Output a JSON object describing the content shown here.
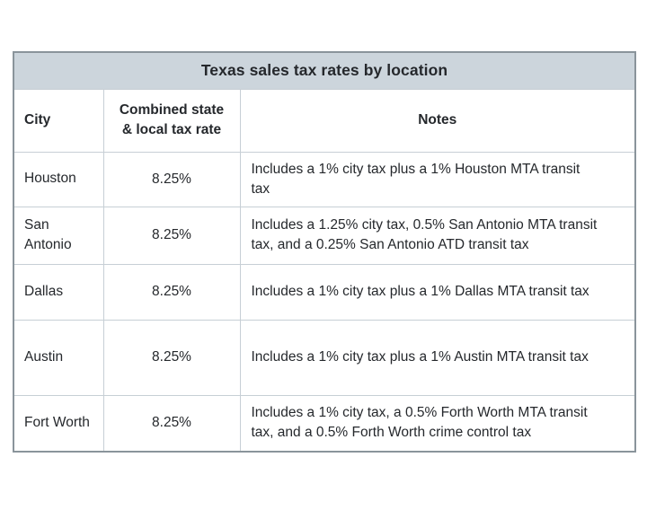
{
  "table": {
    "title": "Texas sales tax rates by location",
    "headers": {
      "city": "City",
      "rate": "Combined state & local tax rate",
      "notes": "Notes"
    },
    "rows": [
      {
        "city": "Houston",
        "rate": "8.25%",
        "notes": "Includes a 1% city tax plus a 1% Houston MTA transit tax"
      },
      {
        "city": "San Antonio",
        "rate": "8.25%",
        "notes": "Includes a 1.25% city tax, 0.5% San Antonio MTA transit tax, and a 0.25% San Antonio ATD transit tax"
      },
      {
        "city": "Dallas",
        "rate": "8.25%",
        "notes": "Includes a 1% city tax plus a 1% Dallas MTA transit tax"
      },
      {
        "city": "Austin",
        "rate": "8.25%",
        "notes": "Includes a 1% city tax plus a 1% Austin MTA transit tax"
      },
      {
        "city": "Fort Worth",
        "rate": "8.25%",
        "notes": "Includes a 1% city tax, a 0.5% Forth Worth MTA transit tax, and a 0.5% Forth Worth crime control tax"
      }
    ],
    "colors": {
      "title_background": "#ccd5dc",
      "outer_border": "#8a949b",
      "inner_border": "#c7cfd5",
      "text": "#25282c",
      "cell_background": "#ffffff"
    }
  }
}
